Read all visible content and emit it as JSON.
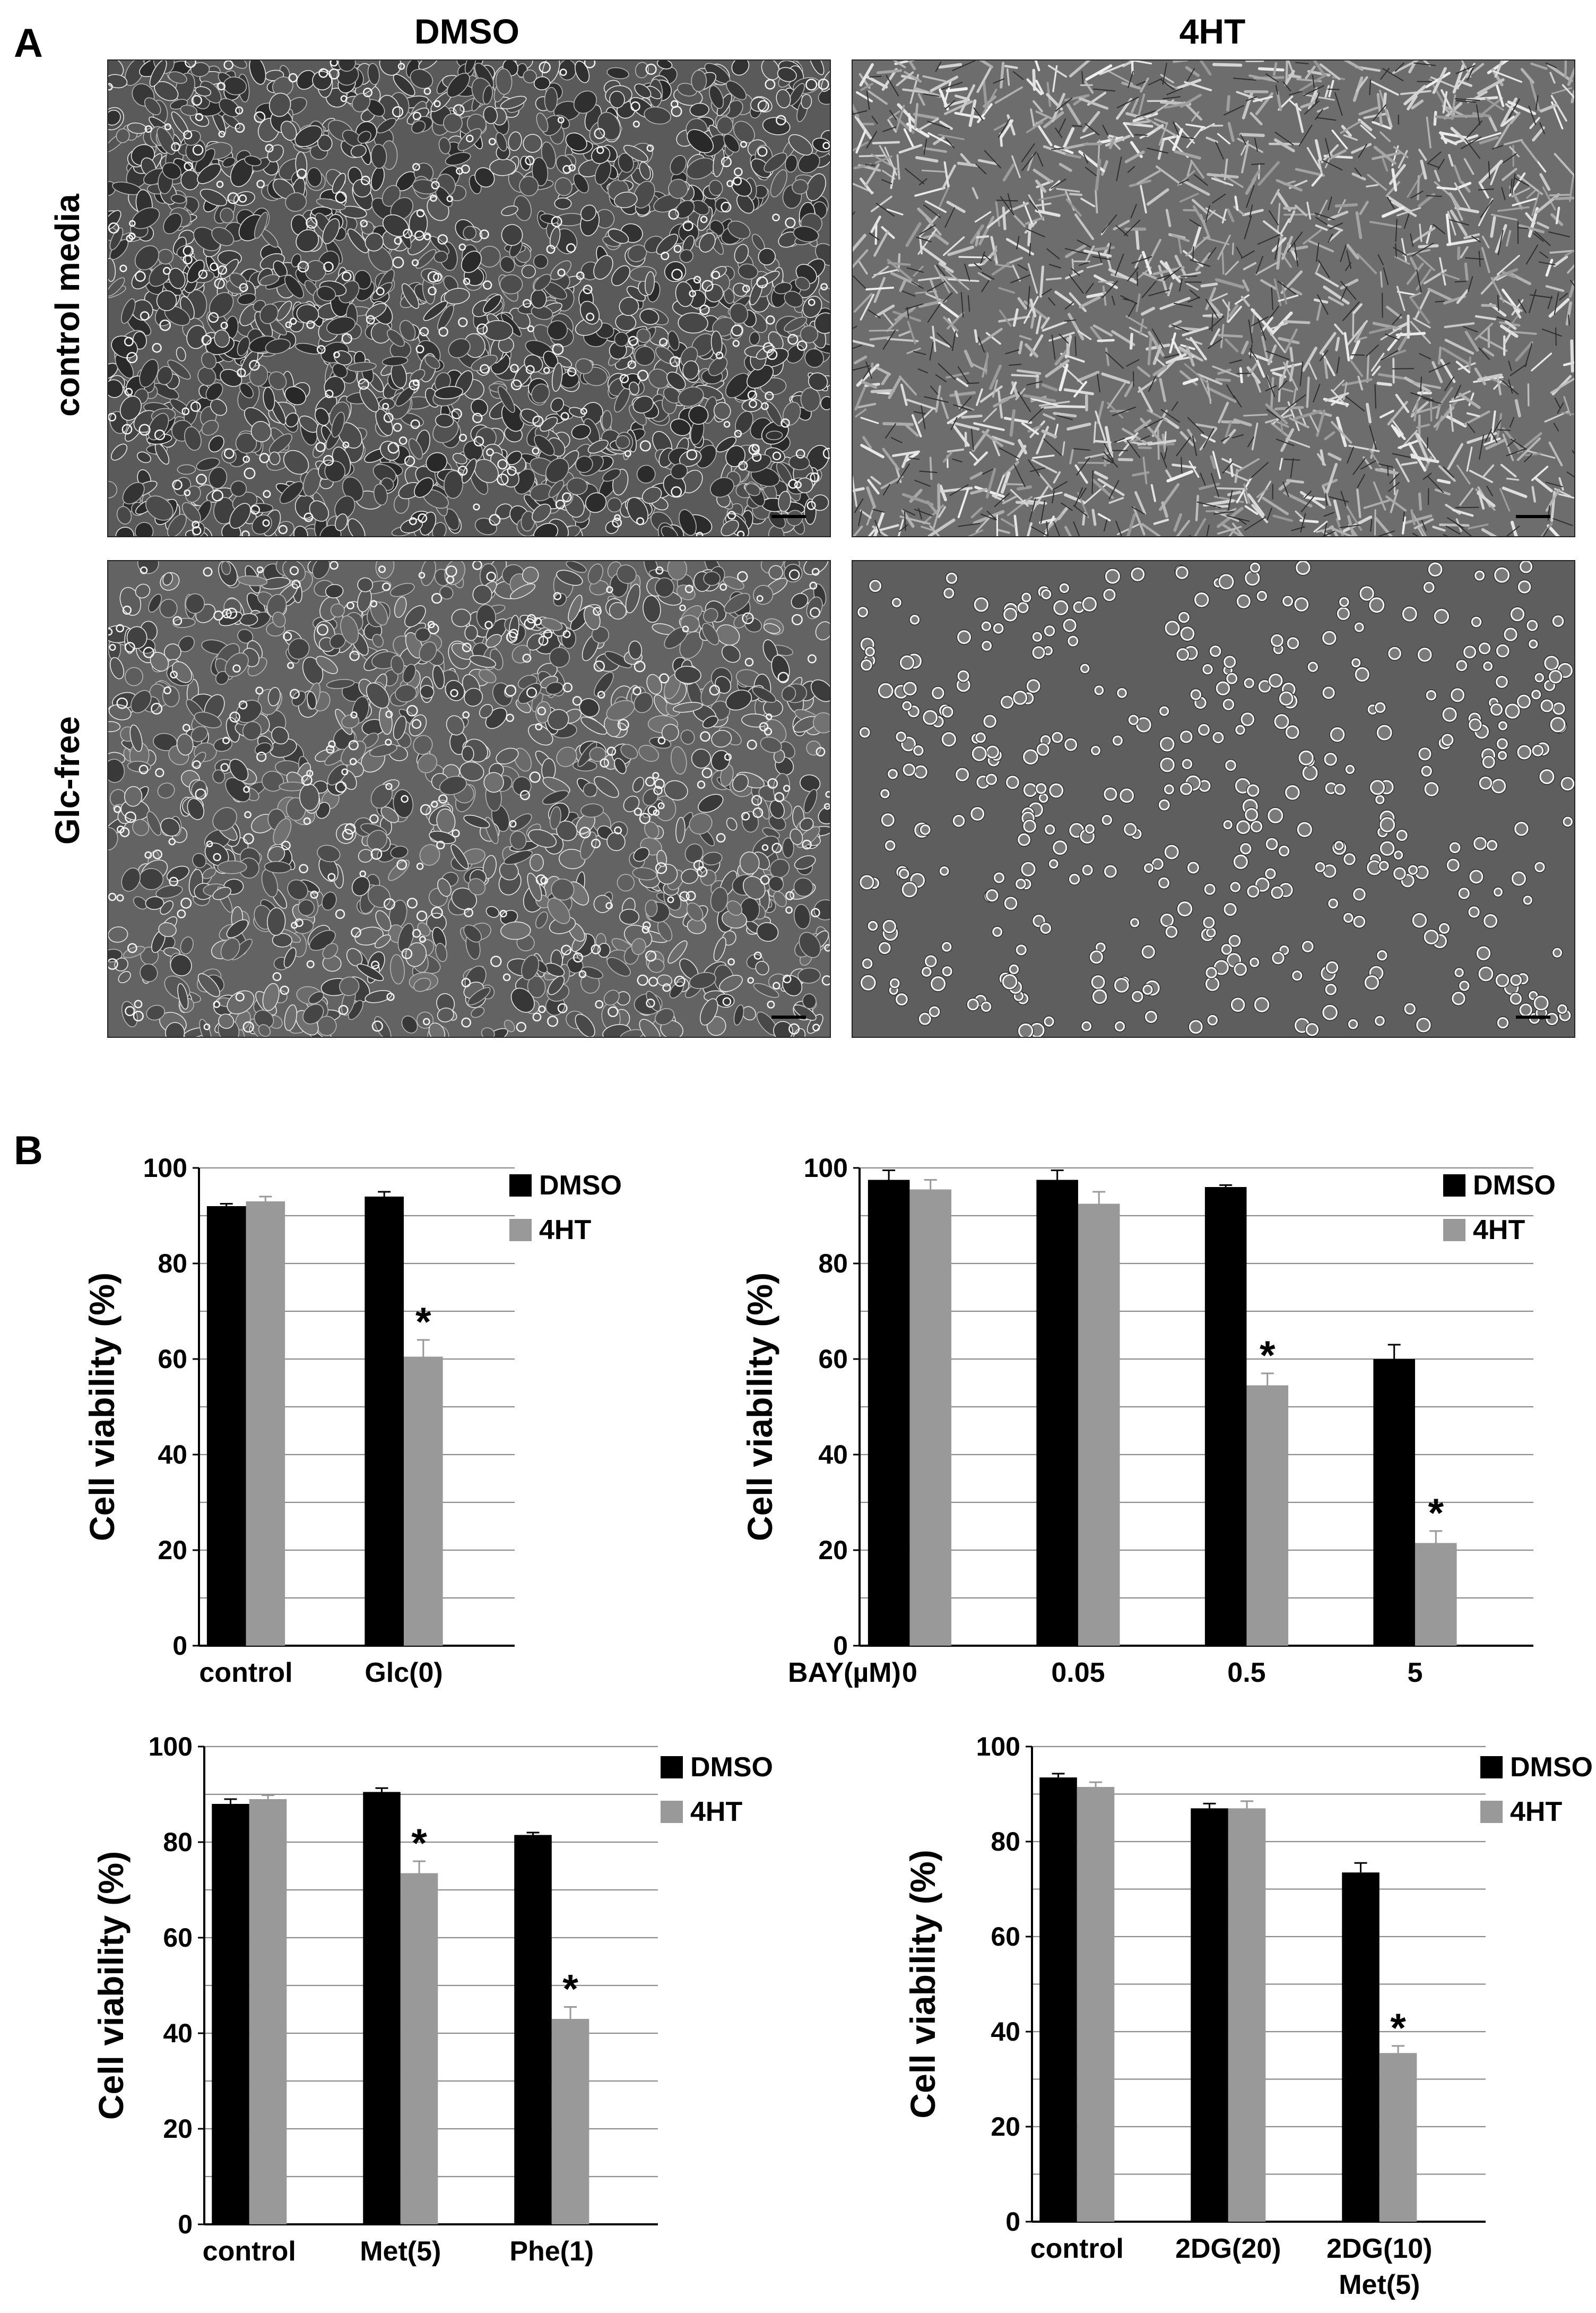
{
  "figure": {
    "panel_a_label": "A",
    "panel_b_label": "B",
    "columns": [
      "DMSO",
      "4HT"
    ],
    "rows": [
      "control media",
      "Glc-free"
    ]
  },
  "colors": {
    "dmso": "#000000",
    "ht": "#999999",
    "grid": "#8c8c8c"
  },
  "micrographs": [
    {
      "row": 0,
      "col": 0,
      "name": "micrograph-control-dmso",
      "bg": "#5a5a5a",
      "style": "dense",
      "seed": 11
    },
    {
      "row": 0,
      "col": 1,
      "name": "micrograph-control-4ht",
      "bg": "#6d6d6d",
      "style": "elongated",
      "seed": 23
    },
    {
      "row": 1,
      "col": 0,
      "name": "micrograph-glcfree-dmso",
      "bg": "#636363",
      "style": "medium",
      "seed": 37
    },
    {
      "row": 1,
      "col": 1,
      "name": "micrograph-glcfree-4ht",
      "bg": "#5e5e5e",
      "style": "round",
      "seed": 41
    }
  ],
  "chart_data": [
    {
      "type": "bar",
      "ylabel": "Cell viability (%)",
      "ylim": [
        0,
        100
      ],
      "yticks": [
        0,
        20,
        40,
        60,
        80,
        100
      ],
      "grid": true,
      "legend": "top-right",
      "xprefix": "",
      "categories": [
        "control",
        "Glc(0)"
      ],
      "series": [
        {
          "name": "DMSO",
          "values": [
            92,
            94
          ],
          "errors": [
            0.5,
            1
          ],
          "sig": [
            false,
            false
          ]
        },
        {
          "name": "4HT",
          "values": [
            93,
            60.5
          ],
          "errors": [
            1,
            3.5
          ],
          "sig": [
            false,
            true
          ]
        }
      ]
    },
    {
      "type": "bar",
      "ylabel": "Cell viability (%)",
      "ylim": [
        0,
        100
      ],
      "yticks": [
        0,
        20,
        40,
        60,
        80,
        100
      ],
      "grid": true,
      "legend": "top-right",
      "xprefix": "BAY(µM)",
      "categories": [
        "0",
        "0.05",
        "0.5",
        "5"
      ],
      "series": [
        {
          "name": "DMSO",
          "values": [
            97.5,
            97.5,
            96,
            60
          ],
          "errors": [
            2,
            2,
            0.4,
            3
          ],
          "sig": [
            false,
            false,
            false,
            false
          ]
        },
        {
          "name": "4HT",
          "values": [
            95.5,
            92.5,
            54.5,
            21.5
          ],
          "errors": [
            2,
            2.5,
            2.5,
            2.5
          ],
          "sig": [
            false,
            false,
            true,
            true
          ]
        }
      ]
    },
    {
      "type": "bar",
      "ylabel": "Cell viability (%)",
      "ylim": [
        0,
        100
      ],
      "yticks": [
        0,
        20,
        40,
        60,
        80,
        100
      ],
      "grid": true,
      "legend": "top-right",
      "xprefix": "",
      "categories": [
        "control",
        "Met(5)",
        "Phe(1)"
      ],
      "series": [
        {
          "name": "DMSO",
          "values": [
            88,
            90.5,
            81.5
          ],
          "errors": [
            1,
            0.8,
            0.5
          ],
          "sig": [
            false,
            false,
            false
          ]
        },
        {
          "name": "4HT",
          "values": [
            89,
            73.5,
            43
          ],
          "errors": [
            0.8,
            2.5,
            2.5
          ],
          "sig": [
            false,
            true,
            true
          ]
        }
      ]
    },
    {
      "type": "bar",
      "ylabel": "Cell viability (%)",
      "ylim": [
        0,
        100
      ],
      "yticks": [
        0,
        20,
        40,
        60,
        80,
        100
      ],
      "grid": true,
      "legend": "top-right",
      "xprefix": "",
      "categories": [
        "control",
        "2DG(20)",
        "2DG(10)\nMet(5)"
      ],
      "series": [
        {
          "name": "DMSO",
          "values": [
            93.5,
            87,
            73.5
          ],
          "errors": [
            0.8,
            1,
            2
          ],
          "sig": [
            false,
            false,
            false
          ]
        },
        {
          "name": "4HT",
          "values": [
            91.5,
            87,
            35.5
          ],
          "errors": [
            1,
            1.5,
            1.5
          ],
          "sig": [
            false,
            false,
            true
          ]
        }
      ]
    }
  ]
}
